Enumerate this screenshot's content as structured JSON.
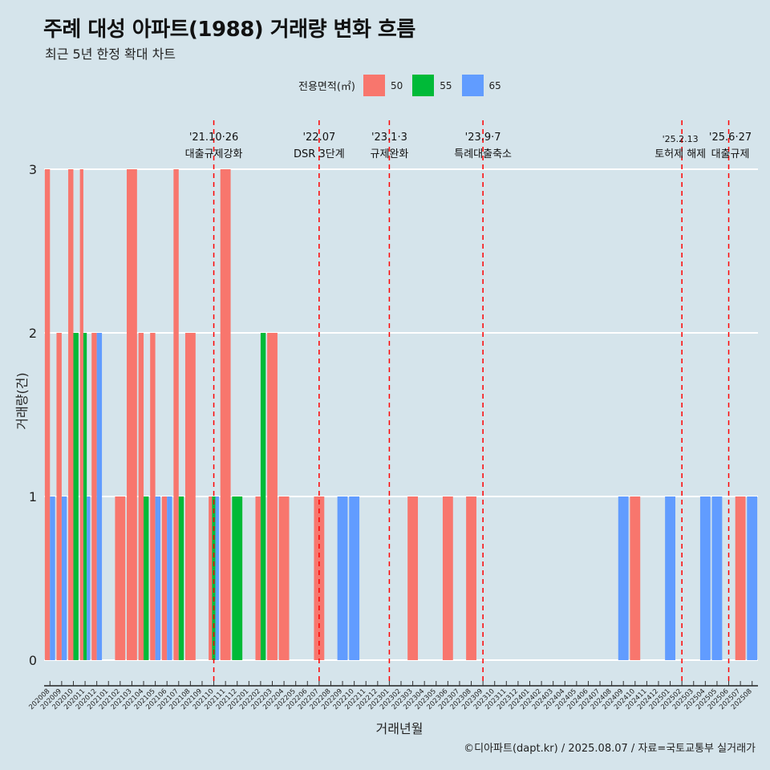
{
  "header": {
    "title": "주례 대성 아파트(1988) 거래량 변화 흐름",
    "subtitle": "최근 5년 한정 확대 차트"
  },
  "legend": {
    "title": "전용면적(㎡)",
    "items": [
      {
        "label": "50",
        "color": "#F8766D"
      },
      {
        "label": "55",
        "color": "#00BA38"
      },
      {
        "label": "65",
        "color": "#619CFF"
      }
    ]
  },
  "caption": "©디아파트(dapt.kr) / 2025.08.07 / 자료=국토교통부 실거래가",
  "chart_data": {
    "type": "bar",
    "stacking": "dodge",
    "xlabel": "거래년월",
    "ylabel": "거래량(건)",
    "ylim": [
      0,
      3
    ],
    "yticks": [
      0,
      1,
      2,
      3
    ],
    "categories": [
      "202008",
      "202009",
      "202010",
      "202011",
      "202012",
      "202101",
      "202102",
      "202103",
      "202104",
      "202105",
      "202106",
      "202107",
      "202108",
      "202109",
      "202110",
      "202111",
      "202112",
      "202201",
      "202202",
      "202203",
      "202204",
      "202205",
      "202206",
      "202207",
      "202208",
      "202209",
      "202210",
      "202211",
      "202212",
      "202301",
      "202302",
      "202303",
      "202304",
      "202305",
      "202306",
      "202307",
      "202308",
      "202309",
      "202310",
      "202311",
      "202312",
      "202401",
      "202402",
      "202403",
      "202404",
      "202405",
      "202406",
      "202407",
      "202408",
      "202409",
      "202410",
      "202411",
      "202412",
      "202501",
      "202502",
      "202503",
      "202504",
      "202505",
      "202506",
      "202507",
      "202508"
    ],
    "series": [
      {
        "name": "50",
        "color": "#F8766D",
        "values": [
          3,
          2,
          3,
          3,
          2,
          0,
          1,
          3,
          2,
          2,
          1,
          3,
          2,
          0,
          1,
          3,
          0,
          0,
          1,
          2,
          1,
          0,
          0,
          1,
          0,
          0,
          0,
          0,
          0,
          0,
          0,
          1,
          0,
          0,
          1,
          0,
          1,
          0,
          0,
          0,
          0,
          0,
          0,
          0,
          0,
          0,
          0,
          0,
          0,
          0,
          1,
          0,
          0,
          0,
          0,
          0,
          0,
          0,
          0,
          1,
          0
        ]
      },
      {
        "name": "55",
        "color": "#00BA38",
        "values": [
          0,
          0,
          2,
          2,
          0,
          0,
          0,
          0,
          1,
          0,
          0,
          1,
          0,
          0,
          1,
          0,
          1,
          0,
          2,
          0,
          0,
          0,
          0,
          0,
          0,
          0,
          0,
          0,
          0,
          0,
          0,
          0,
          0,
          0,
          0,
          0,
          0,
          0,
          0,
          0,
          0,
          0,
          0,
          0,
          0,
          0,
          0,
          0,
          0,
          0,
          0,
          0,
          0,
          0,
          0,
          0,
          0,
          0,
          0,
          0,
          0
        ]
      },
      {
        "name": "65",
        "color": "#619CFF",
        "values": [
          1,
          1,
          0,
          1,
          2,
          0,
          0,
          0,
          0,
          1,
          1,
          0,
          0,
          0,
          1,
          0,
          0,
          0,
          0,
          0,
          0,
          0,
          0,
          0,
          0,
          1,
          1,
          0,
          0,
          0,
          0,
          0,
          0,
          0,
          0,
          0,
          0,
          0,
          0,
          0,
          0,
          0,
          0,
          0,
          0,
          0,
          0,
          0,
          0,
          1,
          0,
          0,
          0,
          1,
          0,
          0,
          1,
          1,
          0,
          0,
          1
        ]
      }
    ],
    "annotations": [
      {
        "x": "202110",
        "date": "'21.10·26",
        "label": "대출규제강화"
      },
      {
        "x": "202207",
        "date": "'22.07",
        "label": "DSR 3단계"
      },
      {
        "x": "202301",
        "date": "'23.1·3",
        "label": "규제완화"
      },
      {
        "x": "202309",
        "date": "'23.9·7",
        "label": "특례대출축소"
      },
      {
        "x": "202502",
        "date": "'25.2.13",
        "label": "토허제 해제"
      },
      {
        "x": "202506",
        "date": "'25.6·27",
        "label": "대출규제"
      }
    ]
  }
}
